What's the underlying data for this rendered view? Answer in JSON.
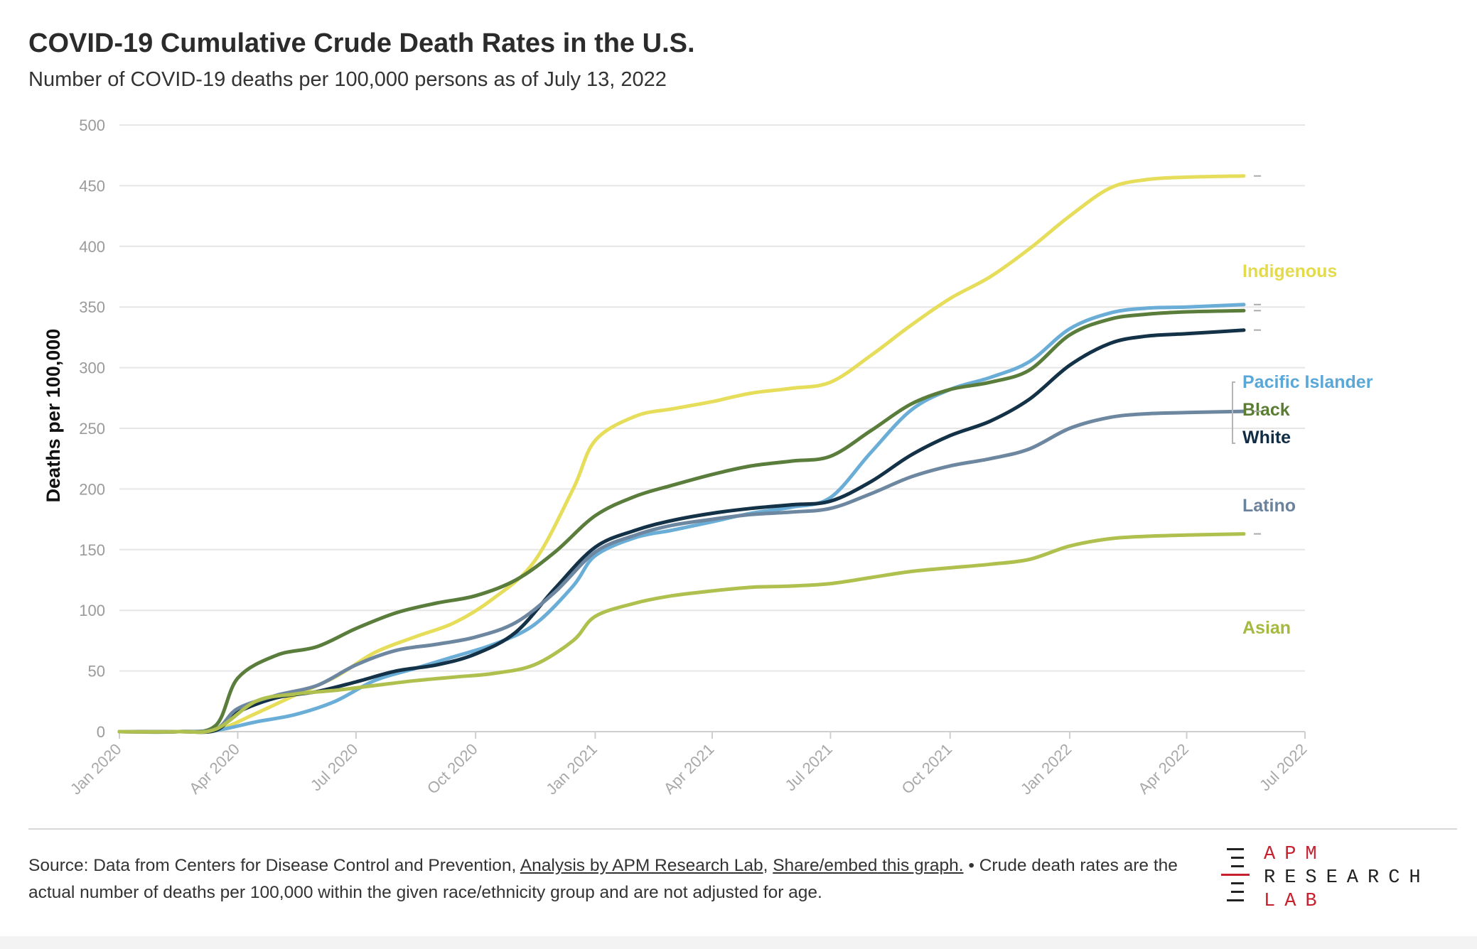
{
  "header": {
    "title": "COVID-19 Cumulative Crude Death Rates in the U.S.",
    "subtitle": "Number of COVID-19 deaths per 100,000 persons as of July 13, 2022"
  },
  "footer": {
    "source_prefix": "Source: Data from Centers for Disease Control and Prevention, ",
    "analysis_link": "Analysis by APM Research Lab",
    "separator": ", ",
    "share_link": "Share/embed this graph.",
    "note": " • Crude death rates are the actual number of deaths per 100,000 within the given race/ethnicity group and are not adjusted for age."
  },
  "logo": {
    "line1": "APM",
    "line2": "RESEARCH",
    "line3": "LAB",
    "accent_color": "#c8202f"
  },
  "chart_data": {
    "type": "line",
    "ylabel": "Deaths per 100,000",
    "xlabel": "",
    "ylim": [
      0,
      500
    ],
    "yticks": [
      0,
      50,
      100,
      150,
      200,
      250,
      300,
      350,
      400,
      450,
      500
    ],
    "xlim": [
      "2020-01-01",
      "2022-07-01"
    ],
    "xticks": [
      {
        "date": "2020-01-01",
        "label": "Jan 2020"
      },
      {
        "date": "2020-04-01",
        "label": "Apr 2020"
      },
      {
        "date": "2020-07-01",
        "label": "Jul 2020"
      },
      {
        "date": "2020-10-01",
        "label": "Oct 2020"
      },
      {
        "date": "2021-01-01",
        "label": "Jan 2021"
      },
      {
        "date": "2021-04-01",
        "label": "Apr 2021"
      },
      {
        "date": "2021-07-01",
        "label": "Jul 2021"
      },
      {
        "date": "2021-10-01",
        "label": "Oct 2021"
      },
      {
        "date": "2022-01-01",
        "label": "Jan 2022"
      },
      {
        "date": "2022-04-01",
        "label": "Apr 2022"
      },
      {
        "date": "2022-07-01",
        "label": "Jul 2022"
      }
    ],
    "grid": true,
    "legend": "direct labels at right end of lines",
    "series": [
      {
        "name": "Indigenous",
        "color": "#e6de5a",
        "label_color": "#e3da4c",
        "points": [
          [
            "2020-01-01",
            0
          ],
          [
            "2020-02-15",
            0
          ],
          [
            "2020-03-15",
            1
          ],
          [
            "2020-04-15",
            15
          ],
          [
            "2020-05-15",
            30
          ],
          [
            "2020-06-15",
            45
          ],
          [
            "2020-07-15",
            65
          ],
          [
            "2020-08-15",
            78
          ],
          [
            "2020-09-15",
            90
          ],
          [
            "2020-10-15",
            110
          ],
          [
            "2020-11-15",
            140
          ],
          [
            "2020-12-15",
            200
          ],
          [
            "2021-01-01",
            240
          ],
          [
            "2021-02-01",
            260
          ],
          [
            "2021-03-01",
            266
          ],
          [
            "2021-04-01",
            272
          ],
          [
            "2021-05-01",
            279
          ],
          [
            "2021-06-01",
            283
          ],
          [
            "2021-07-01",
            288
          ],
          [
            "2021-08-01",
            310
          ],
          [
            "2021-09-01",
            335
          ],
          [
            "2021-10-01",
            357
          ],
          [
            "2021-11-01",
            375
          ],
          [
            "2021-12-01",
            398
          ],
          [
            "2022-01-01",
            425
          ],
          [
            "2022-02-01",
            448
          ],
          [
            "2022-03-01",
            455
          ],
          [
            "2022-04-01",
            457
          ],
          [
            "2022-05-15",
            458
          ]
        ]
      },
      {
        "name": "Pacific Islander",
        "color": "#6aaed8",
        "label_color": "#5aa7d8",
        "points": [
          [
            "2020-01-01",
            0
          ],
          [
            "2020-02-15",
            0
          ],
          [
            "2020-03-15",
            1
          ],
          [
            "2020-04-15",
            8
          ],
          [
            "2020-05-15",
            14
          ],
          [
            "2020-06-15",
            25
          ],
          [
            "2020-07-15",
            42
          ],
          [
            "2020-08-15",
            52
          ],
          [
            "2020-09-15",
            62
          ],
          [
            "2020-10-15",
            72
          ],
          [
            "2020-11-15",
            88
          ],
          [
            "2020-12-15",
            120
          ],
          [
            "2021-01-01",
            145
          ],
          [
            "2021-02-01",
            160
          ],
          [
            "2021-03-01",
            166
          ],
          [
            "2021-04-01",
            173
          ],
          [
            "2021-05-01",
            180
          ],
          [
            "2021-06-01",
            185
          ],
          [
            "2021-07-01",
            193
          ],
          [
            "2021-08-01",
            230
          ],
          [
            "2021-09-01",
            265
          ],
          [
            "2021-10-01",
            282
          ],
          [
            "2021-11-01",
            292
          ],
          [
            "2021-12-01",
            305
          ],
          [
            "2022-01-01",
            332
          ],
          [
            "2022-02-01",
            345
          ],
          [
            "2022-03-01",
            349
          ],
          [
            "2022-04-01",
            350
          ],
          [
            "2022-05-15",
            352
          ]
        ]
      },
      {
        "name": "Black",
        "color": "#5a7d3c",
        "label_color": "#5a7d33",
        "points": [
          [
            "2020-01-01",
            0
          ],
          [
            "2020-02-15",
            0
          ],
          [
            "2020-03-15",
            5
          ],
          [
            "2020-04-01",
            44
          ],
          [
            "2020-05-01",
            63
          ],
          [
            "2020-06-01",
            70
          ],
          [
            "2020-07-01",
            85
          ],
          [
            "2020-08-01",
            98
          ],
          [
            "2020-09-01",
            106
          ],
          [
            "2020-10-01",
            112
          ],
          [
            "2020-11-01",
            125
          ],
          [
            "2020-12-01",
            148
          ],
          [
            "2021-01-01",
            178
          ],
          [
            "2021-02-01",
            194
          ],
          [
            "2021-03-01",
            203
          ],
          [
            "2021-04-01",
            212
          ],
          [
            "2021-05-01",
            219
          ],
          [
            "2021-06-01",
            223
          ],
          [
            "2021-07-01",
            227
          ],
          [
            "2021-08-01",
            248
          ],
          [
            "2021-09-01",
            270
          ],
          [
            "2021-10-01",
            282
          ],
          [
            "2021-11-01",
            288
          ],
          [
            "2021-12-01",
            298
          ],
          [
            "2022-01-01",
            327
          ],
          [
            "2022-02-01",
            340
          ],
          [
            "2022-03-01",
            344
          ],
          [
            "2022-04-01",
            346
          ],
          [
            "2022-05-15",
            347
          ]
        ]
      },
      {
        "name": "White",
        "color": "#133147",
        "label_color": "#102d45",
        "points": [
          [
            "2020-01-01",
            0
          ],
          [
            "2020-02-15",
            0
          ],
          [
            "2020-03-15",
            1
          ],
          [
            "2020-04-01",
            16
          ],
          [
            "2020-05-01",
            28
          ],
          [
            "2020-06-01",
            33
          ],
          [
            "2020-07-01",
            41
          ],
          [
            "2020-08-01",
            50
          ],
          [
            "2020-09-01",
            55
          ],
          [
            "2020-10-01",
            64
          ],
          [
            "2020-11-01",
            82
          ],
          [
            "2020-12-01",
            118
          ],
          [
            "2021-01-01",
            152
          ],
          [
            "2021-02-01",
            166
          ],
          [
            "2021-03-01",
            174
          ],
          [
            "2021-04-01",
            180
          ],
          [
            "2021-05-01",
            184
          ],
          [
            "2021-06-01",
            187
          ],
          [
            "2021-07-01",
            190
          ],
          [
            "2021-08-01",
            206
          ],
          [
            "2021-09-01",
            228
          ],
          [
            "2021-10-01",
            244
          ],
          [
            "2021-11-01",
            256
          ],
          [
            "2021-12-01",
            274
          ],
          [
            "2022-01-01",
            302
          ],
          [
            "2022-02-01",
            320
          ],
          [
            "2022-03-01",
            326
          ],
          [
            "2022-04-01",
            328
          ],
          [
            "2022-05-15",
            331
          ]
        ]
      },
      {
        "name": "Latino",
        "color": "#6e87a0",
        "label_color": "#6a829b",
        "points": [
          [
            "2020-01-01",
            0
          ],
          [
            "2020-02-15",
            0
          ],
          [
            "2020-03-15",
            2
          ],
          [
            "2020-04-01",
            19
          ],
          [
            "2020-05-01",
            30
          ],
          [
            "2020-06-01",
            38
          ],
          [
            "2020-07-01",
            55
          ],
          [
            "2020-08-01",
            67
          ],
          [
            "2020-09-01",
            72
          ],
          [
            "2020-10-01",
            78
          ],
          [
            "2020-11-01",
            90
          ],
          [
            "2020-12-01",
            115
          ],
          [
            "2021-01-01",
            148
          ],
          [
            "2021-02-01",
            162
          ],
          [
            "2021-03-01",
            170
          ],
          [
            "2021-04-01",
            175
          ],
          [
            "2021-05-01",
            179
          ],
          [
            "2021-06-01",
            181
          ],
          [
            "2021-07-01",
            184
          ],
          [
            "2021-08-01",
            196
          ],
          [
            "2021-09-01",
            210
          ],
          [
            "2021-10-01",
            219
          ],
          [
            "2021-11-01",
            225
          ],
          [
            "2021-12-01",
            233
          ],
          [
            "2022-01-01",
            250
          ],
          [
            "2022-02-01",
            259
          ],
          [
            "2022-03-01",
            262
          ],
          [
            "2022-04-01",
            263
          ],
          [
            "2022-05-15",
            264
          ]
        ]
      },
      {
        "name": "Asian",
        "color": "#b0c04e",
        "label_color": "#a5b840",
        "points": [
          [
            "2020-01-01",
            0
          ],
          [
            "2020-02-15",
            0
          ],
          [
            "2020-03-15",
            2
          ],
          [
            "2020-04-15",
            25
          ],
          [
            "2020-05-15",
            31
          ],
          [
            "2020-06-15",
            34
          ],
          [
            "2020-07-15",
            38
          ],
          [
            "2020-08-15",
            42
          ],
          [
            "2020-09-15",
            45
          ],
          [
            "2020-10-15",
            48
          ],
          [
            "2020-11-15",
            55
          ],
          [
            "2020-12-15",
            75
          ],
          [
            "2021-01-01",
            95
          ],
          [
            "2021-02-01",
            106
          ],
          [
            "2021-03-01",
            112
          ],
          [
            "2021-04-01",
            116
          ],
          [
            "2021-05-01",
            119
          ],
          [
            "2021-06-01",
            120
          ],
          [
            "2021-07-01",
            122
          ],
          [
            "2021-08-01",
            127
          ],
          [
            "2021-09-01",
            132
          ],
          [
            "2021-10-01",
            135
          ],
          [
            "2021-11-01",
            138
          ],
          [
            "2021-12-01",
            142
          ],
          [
            "2022-01-01",
            153
          ],
          [
            "2022-02-01",
            159
          ],
          [
            "2022-03-01",
            161
          ],
          [
            "2022-04-01",
            162
          ],
          [
            "2022-05-15",
            163
          ]
        ]
      }
    ]
  }
}
